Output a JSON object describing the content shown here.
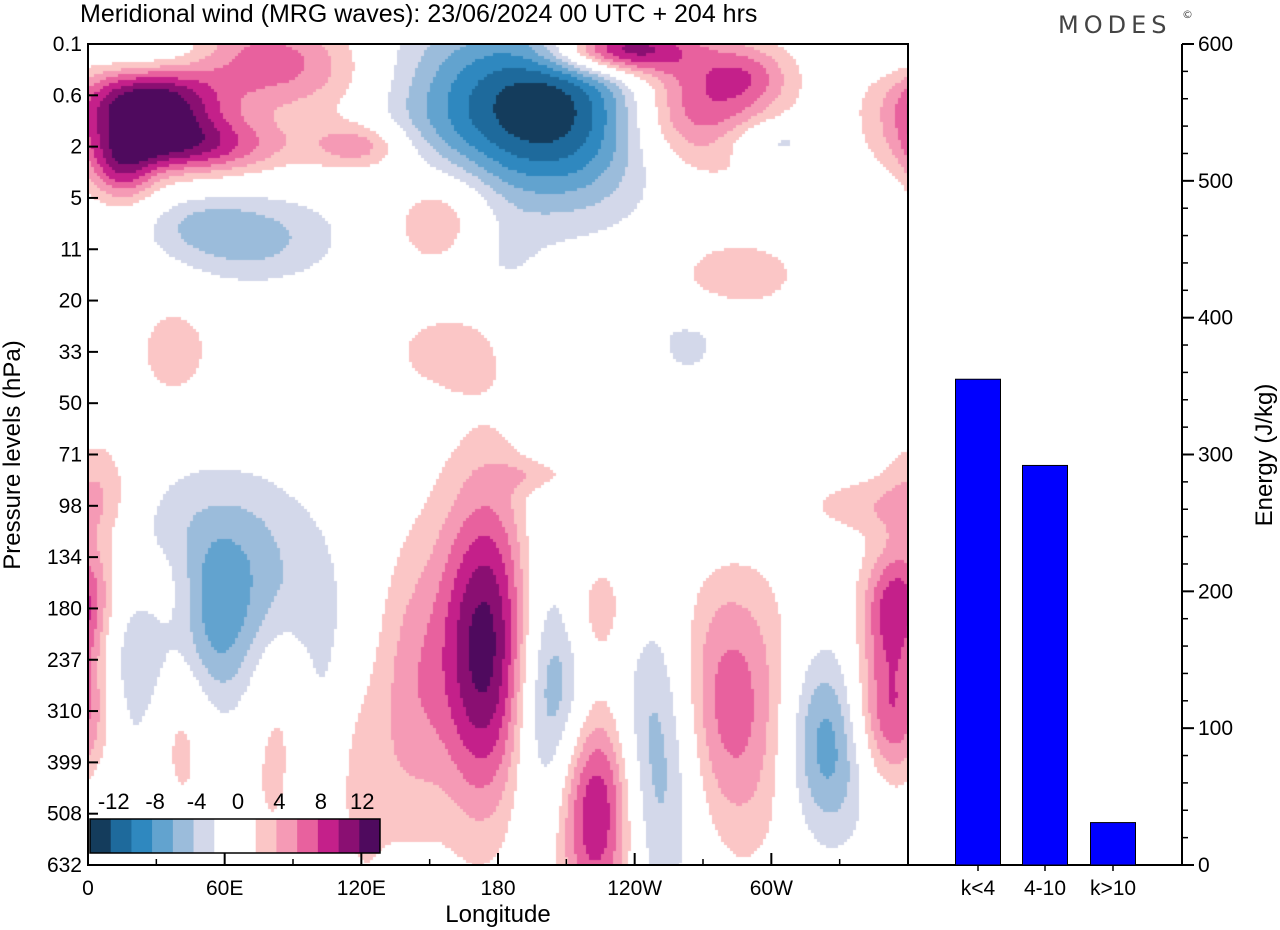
{
  "title": "Meridional wind (MRG waves):  23/06/2024  00 UTC  + 204 hrs",
  "brand": "MODES",
  "brand_mark": "©",
  "chart_data": [
    {
      "type": "heatmap",
      "title": "Meridional wind (MRG waves)",
      "xlabel": "Longitude",
      "ylabel": "Pressure levels (hPa)",
      "x_ticks": [
        "0",
        "60E",
        "120E",
        "180",
        "120W",
        "60W"
      ],
      "y_ticks": [
        "0.1",
        "0.6",
        "2",
        "5",
        "11",
        "20",
        "33",
        "50",
        "71",
        "98",
        "134",
        "180",
        "237",
        "310",
        "399",
        "508",
        "632"
      ],
      "colorbar": {
        "labels": [
          "-12",
          "-8",
          "-4",
          "0",
          "4",
          "8",
          "12"
        ],
        "colors": [
          "#143c5c",
          "#1e6a9c",
          "#2f88bf",
          "#62a3cf",
          "#9bbcdb",
          "#d3d8ea",
          "#ffffff",
          "#ffffff",
          "#fbc6c6",
          "#f59ab5",
          "#e8619e",
          "#c4208a",
          "#8a0f72",
          "#4f0a5e"
        ]
      },
      "features": [
        {
          "lon": 25,
          "lev": 1.2,
          "sx": 0.75,
          "sy": 0.55,
          "amp": 14
        },
        {
          "lon": 43,
          "lev": 2.0,
          "sx": 1.0,
          "sy": 0.4,
          "amp": 9
        },
        {
          "lon": 70,
          "lev": 0.2,
          "sx": 1.0,
          "sy": 0.55,
          "amp": 7
        },
        {
          "lon": 35,
          "lev": 0.2,
          "sx": 0.8,
          "sy": 0.4,
          "amp": -5
        },
        {
          "lon": 100,
          "lev": 0.9,
          "sx": 1.0,
          "sy": 0.6,
          "amp": 3
        },
        {
          "lon": 15,
          "lev": 2.5,
          "sx": 0.35,
          "sy": 0.45,
          "amp": 7
        },
        {
          "lon": 120,
          "lev": 2.0,
          "sx": 0.5,
          "sy": 0.35,
          "amp": 6
        },
        {
          "lon": 155,
          "lev": 3.3,
          "sx": 0.55,
          "sy": 0.75,
          "amp": 5
        },
        {
          "lon": 165,
          "lev": 1.2,
          "sx": 1.1,
          "sy": 1.2,
          "amp": -6
        },
        {
          "lon": 210,
          "lev": 1.3,
          "sx": 1.05,
          "sy": 1.3,
          "amp": -11
        },
        {
          "lon": 232,
          "lev": 0.1,
          "sx": 0.7,
          "sy": 0.35,
          "amp": 14
        },
        {
          "lon": 266,
          "lev": 1.2,
          "sx": 0.8,
          "sy": 0.9,
          "amp": 9
        },
        {
          "lon": 290,
          "lev": 0.6,
          "sx": 0.45,
          "sy": 0.4,
          "amp": 4
        },
        {
          "lon": 285,
          "lev": 4.5,
          "sx": 0.8,
          "sy": 0.6,
          "amp": 3
        },
        {
          "lon": 300,
          "lev": 1.9,
          "sx": 0.5,
          "sy": 0.3,
          "amp": -4
        },
        {
          "lon": 70,
          "lev": 3.8,
          "sx": 0.9,
          "sy": 0.6,
          "amp": -5
        },
        {
          "lon": 50,
          "lev": 3.5,
          "sx": 0.5,
          "sy": 0.35,
          "amp": -2
        },
        {
          "lon": 180,
          "lev": 4.2,
          "sx": 0.45,
          "sy": 0.6,
          "amp": -2
        },
        {
          "lon": 38,
          "lev": 6.0,
          "sx": 0.45,
          "sy": 0.8,
          "amp": 3
        },
        {
          "lon": 160,
          "lev": 6.0,
          "sx": 0.7,
          "sy": 0.6,
          "amp": 3
        },
        {
          "lon": 200,
          "lev": 5.8,
          "sx": 0.45,
          "sy": 0.4,
          "amp": -2
        },
        {
          "lon": 240,
          "lev": 6.2,
          "sx": 0.35,
          "sy": 0.4,
          "amp": 2
        },
        {
          "lon": 263,
          "lev": 5.9,
          "sx": 0.5,
          "sy": 0.5,
          "amp": -3
        },
        {
          "lon": 288,
          "lev": 6.2,
          "sx": 0.35,
          "sy": 0.3,
          "amp": 2
        },
        {
          "lon": 48,
          "lev": 11.0,
          "sx": 0.7,
          "sy": 1.5,
          "amp": -10
        },
        {
          "lon": 18,
          "lev": 12.5,
          "sx": 0.45,
          "sy": 2.0,
          "amp": -3
        },
        {
          "lon": 40,
          "lev": 12.6,
          "sx": 0.35,
          "sy": 1.6,
          "amp": 6
        },
        {
          "lon": 32,
          "lev": 10.6,
          "sx": 0.45,
          "sy": 0.8,
          "amp": 5
        },
        {
          "lon": 3,
          "lev": 10.2,
          "sx": 0.35,
          "sy": 1.0,
          "amp": 3
        },
        {
          "lon": 88,
          "lev": 10.8,
          "sx": 0.45,
          "sy": 0.8,
          "amp": -2
        },
        {
          "lon": 88,
          "lev": 13.5,
          "sx": 0.45,
          "sy": 2.0,
          "amp": 4
        },
        {
          "lon": 102,
          "lev": 13.8,
          "sx": 0.35,
          "sy": 2.5,
          "amp": -5
        },
        {
          "lon": 116,
          "lev": 14.5,
          "sx": 0.35,
          "sy": 1.6,
          "amp": 4
        },
        {
          "lon": 141,
          "lev": 12.7,
          "sx": 0.35,
          "sy": 2.0,
          "amp": 4
        },
        {
          "lon": 176,
          "lev": 11.8,
          "sx": 0.55,
          "sy": 2.2,
          "amp": 14
        },
        {
          "lon": 203,
          "lev": 12.5,
          "sx": 0.45,
          "sy": 2.2,
          "amp": -10
        },
        {
          "lon": 223,
          "lev": 14.8,
          "sx": 0.45,
          "sy": 1.6,
          "amp": 13
        },
        {
          "lon": 220,
          "lev": 11.0,
          "sx": 0.45,
          "sy": 0.9,
          "amp": 5
        },
        {
          "lon": 247,
          "lev": 14.0,
          "sx": 0.5,
          "sy": 2.0,
          "amp": -7
        },
        {
          "lon": 277,
          "lev": 12.8,
          "sx": 0.5,
          "sy": 1.8,
          "amp": 6
        },
        {
          "lon": 297,
          "lev": 13.2,
          "sx": 0.5,
          "sy": 2.0,
          "amp": 3
        },
        {
          "lon": 325,
          "lev": 13.6,
          "sx": 0.45,
          "sy": 1.3,
          "amp": -8
        },
        {
          "lon": 353,
          "lev": 13.0,
          "sx": 0.45,
          "sy": 1.0,
          "amp": 9
        },
        {
          "lon": 354,
          "lev": 11.0,
          "sx": 0.35,
          "sy": 0.8,
          "amp": 8
        },
        {
          "lon": 340,
          "lev": 9.0,
          "sx": 0.65,
          "sy": 0.4,
          "amp": 3
        },
        {
          "lon": 265,
          "lev": 9.0,
          "sx": 0.8,
          "sy": 0.7,
          "amp": -2
        },
        {
          "lon": 200,
          "lev": 8.4,
          "sx": 0.5,
          "sy": 0.25,
          "amp": 3
        },
        {
          "lon": 80,
          "lev": 9.4,
          "sx": 0.5,
          "sy": 0.9,
          "amp": -2
        },
        {
          "lon": 5,
          "lev": 8.5,
          "sx": 0.4,
          "sy": 0.7,
          "amp": 3
        }
      ]
    },
    {
      "type": "bar",
      "categories": [
        "k<4",
        "4-10",
        "k>10"
      ],
      "values": [
        355,
        292,
        31
      ],
      "ylabel": "Energy (J/kg)",
      "ylim": [
        0,
        600
      ],
      "y_ticks": [
        0,
        100,
        200,
        300,
        400,
        500,
        600
      ],
      "bar_color": "#0000ff"
    }
  ]
}
